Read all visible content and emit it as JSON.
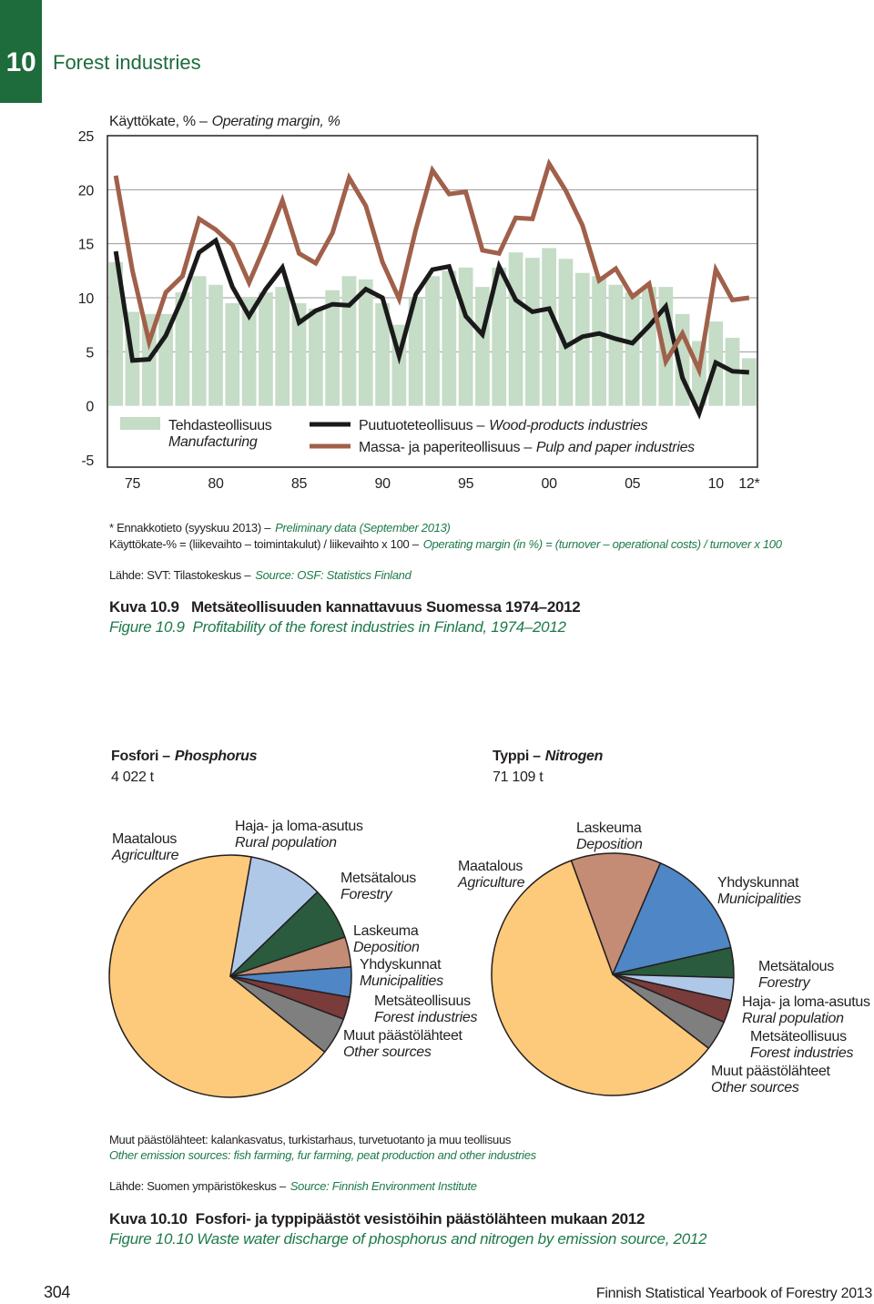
{
  "header": {
    "chapter": "10",
    "title": "Forest industries"
  },
  "chart_data": [
    {
      "type": "combo",
      "ylabel_fi": "Käyttökate, % –",
      "ylabel_en": "Operating margin, %",
      "x": [
        1974,
        1975,
        1976,
        1977,
        1978,
        1979,
        1980,
        1981,
        1982,
        1983,
        1984,
        1985,
        1986,
        1987,
        1988,
        1989,
        1990,
        1991,
        1992,
        1993,
        1994,
        1995,
        1996,
        1997,
        1998,
        1999,
        2000,
        2001,
        2002,
        2003,
        2004,
        2005,
        2006,
        2007,
        2008,
        2009,
        2010,
        2011,
        2012
      ],
      "xlim": [
        1973.5,
        2012.5
      ],
      "xticks": [
        {
          "value": 1975,
          "label": "75"
        },
        {
          "value": 1980,
          "label": "80"
        },
        {
          "value": 1985,
          "label": "85"
        },
        {
          "value": 1990,
          "label": "90"
        },
        {
          "value": 1995,
          "label": "95"
        },
        {
          "value": 2000,
          "label": "00"
        },
        {
          "value": 2005,
          "label": "05"
        },
        {
          "value": 2010,
          "label": "10"
        },
        {
          "value": 2012,
          "label": "12*"
        }
      ],
      "ylim": [
        -5,
        25
      ],
      "yticks": [
        -5,
        0,
        5,
        10,
        15,
        20,
        25
      ],
      "grid": true,
      "series": [
        {
          "name": "Tehdasteollisuus",
          "name_en": "Manufacturing",
          "type": "bar",
          "color": "#c5dcc6",
          "values": [
            13.3,
            8.7,
            8.5,
            8.5,
            10.5,
            12,
            11.2,
            9.5,
            10,
            10.5,
            11,
            9.5,
            9,
            10.7,
            12,
            11.7,
            9.5,
            7.5,
            10,
            12,
            12.5,
            12.8,
            11,
            12.8,
            14.2,
            13.7,
            14.6,
            13.6,
            12.3,
            12,
            11.2,
            10.5,
            11,
            11,
            8.5,
            6,
            7.8,
            6.3,
            4.4
          ]
        },
        {
          "name": "Puutuoteteollisuus –",
          "name_en": "Wood-products industries",
          "type": "line",
          "color": "#1a1a1a",
          "values": [
            14.3,
            4.2,
            4.3,
            6.5,
            10,
            14.2,
            15.3,
            11,
            8.3,
            10.8,
            12.8,
            7.7,
            8.8,
            9.4,
            9.3,
            10.8,
            10,
            4.6,
            10.3,
            12.6,
            12.9,
            8.3,
            6.6,
            12.9,
            9.8,
            8.7,
            9,
            5.5,
            6.4,
            6.7,
            6.2,
            5.8,
            7.4,
            9.2,
            2.6,
            -0.7,
            4,
            3.2,
            3.1
          ]
        },
        {
          "name": "Massa- ja paperiteollisuus –",
          "name_en": "Pulp and paper industries",
          "type": "line",
          "color": "#a0604a",
          "values": [
            21.3,
            12.5,
            5.9,
            10.5,
            12,
            17.3,
            16.3,
            14.9,
            11.4,
            15,
            19,
            14.1,
            13.2,
            16,
            21.1,
            18.5,
            13.3,
            9.9,
            16.3,
            21.8,
            19.6,
            19.8,
            14.4,
            14.1,
            17.4,
            17.3,
            22.4,
            19.9,
            16.7,
            11.6,
            12.7,
            10.1,
            11.3,
            4.1,
            6.7,
            3.3,
            12.6,
            9.8,
            10
          ]
        }
      ]
    },
    {
      "type": "pie",
      "title_fi": "Fosfori –",
      "title_en": "Phosphorus",
      "subtitle": "4 022 t",
      "categories": [
        "Maatalous",
        "Haja- ja loma-asutus",
        "Metsätalous",
        "Laskeuma",
        "Yhdyskunnat",
        "Metsäteollisuus",
        "Muut päästölähteet"
      ],
      "categories_en": [
        "Agriculture",
        "Rural population",
        "Forestry",
        "Deposition",
        "Municipalities",
        "Forest industries",
        "Other sources"
      ],
      "values": [
        67,
        10,
        7,
        4,
        4,
        3,
        5
      ],
      "colors": [
        "#fdc97b",
        "#b0c8e8",
        "#2a5b3e",
        "#c48c74",
        "#4f86c6",
        "#7a3b3b",
        "#7f7f7f"
      ]
    },
    {
      "type": "pie",
      "title_fi": "Typpi –",
      "title_en": "Nitrogen",
      "subtitle": "71 109 t",
      "categories": [
        "Maatalous",
        "Laskeuma",
        "Yhdyskunnat",
        "Metsätalous",
        "Haja- ja loma-asutus",
        "Metsäteollisuus",
        "Muut päästölähteet"
      ],
      "categories_en": [
        "Agriculture",
        "Deposition",
        "Municipalities",
        "Forestry",
        "Rural population",
        "Forest industries",
        "Other sources"
      ],
      "values": [
        59,
        12,
        15,
        4,
        3,
        3,
        4
      ],
      "colors": [
        "#fdc97b",
        "#c48c74",
        "#4f86c6",
        "#2a5b3e",
        "#b0c8e8",
        "#7a3b3b",
        "#7f7f7f"
      ]
    }
  ],
  "figure_1": {
    "notes": [
      {
        "fi": "* Ennakkotieto (syyskuu 2013) –",
        "en": "Preliminary data (September 2013)"
      },
      {
        "fi": "Käyttökate-% = (liikevaihto – toimintakulut) / liikevaihto x 100 –",
        "en": "Operating margin (in %) = (turnover – operational costs) / turnover x 100"
      },
      {
        "fi": "Lähde: SVT: Tilastokeskus –",
        "en": "Source: OSF: Statistics Finland"
      }
    ],
    "caption_fi": "Kuva 10.9   Metsäteollisuuden kannattavuus Suomessa 1974–2012",
    "caption_en": "Figure 10.9  Profitability of the forest industries in Finland, 1974–2012"
  },
  "figure_2": {
    "note_fi": "Muut päästölähteet: kalankasvatus, turkistarhaus, turvetuotanto ja muu teollisuus",
    "note_en": "Other emission sources: fish farming, fur farming, peat production and other industries",
    "source_fi": "Lähde: Suomen ympäristökeskus –",
    "source_en": "Source: Finnish Environment Institute",
    "caption_fi": "Kuva 10.10  Fosfori- ja typpipäästöt vesistöihin päästölähteen mukaan 2012",
    "caption_en": "Figure 10.10 Waste water discharge of phosphorus and nitrogen by emission source, 2012"
  },
  "footer": {
    "page": "304",
    "book": "Finnish Statistical Yearbook of Forestry 2013"
  }
}
